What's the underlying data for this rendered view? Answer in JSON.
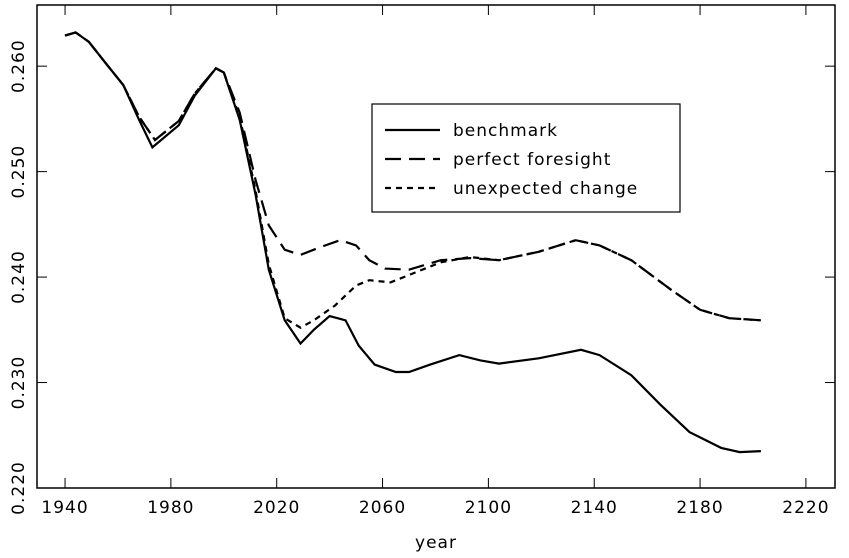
{
  "chart_data": {
    "type": "line",
    "x_label": "year",
    "xlim": [
      1929.4,
      2231
    ],
    "xticks": [
      1940,
      1980,
      2020,
      2060,
      2100,
      2140,
      2180,
      2220
    ],
    "ylim": [
      0.22,
      0.2658
    ],
    "yticks": [
      {
        "value": 0.22,
        "label": "0.220"
      },
      {
        "value": 0.23,
        "label": "0.230"
      },
      {
        "value": 0.24,
        "label": "0.240"
      },
      {
        "value": 0.25,
        "label": "0.250"
      },
      {
        "value": 0.26,
        "label": "0.260"
      }
    ],
    "series": [
      {
        "name": "benchmark",
        "color": "#000000",
        "dash": "solid",
        "x": [
          1940,
          1944,
          1949,
          1955,
          1962,
          1968,
          1973,
          1983,
          1989,
          1997,
          2000,
          2006,
          2012,
          2017,
          2023,
          2029,
          2034,
          2040,
          2046,
          2051,
          2057,
          2065,
          2070,
          2078,
          2089,
          2097,
          2104,
          2119,
          2135,
          2142,
          2154,
          2165,
          2176,
          2188,
          2195,
          2203
        ],
        "values": [
          0.2629,
          0.2632,
          0.2623,
          0.2604,
          0.2582,
          0.2549,
          0.2523,
          0.2544,
          0.2572,
          0.2598,
          0.2594,
          0.2549,
          0.2478,
          0.2407,
          0.2359,
          0.2337,
          0.235,
          0.2363,
          0.2359,
          0.2335,
          0.2317,
          0.231,
          0.231,
          0.2317,
          0.2326,
          0.2321,
          0.2318,
          0.2323,
          0.2331,
          0.2326,
          0.2307,
          0.2279,
          0.2253,
          0.2238,
          0.2234,
          0.2235
        ]
      },
      {
        "name": "perfect foresight",
        "color": "#000000",
        "dash": "long",
        "x": [
          1940,
          1944,
          1949,
          1955,
          1962,
          1968,
          1974,
          1983,
          1989,
          1997,
          2000,
          2006,
          2012,
          2017,
          2023,
          2029,
          2036,
          2044,
          2050,
          2055,
          2061,
          2070,
          2082,
          2093,
          2104,
          2119,
          2133,
          2142,
          2154,
          2169,
          2180,
          2191,
          2203
        ],
        "values": [
          0.2629,
          0.2632,
          0.2623,
          0.2604,
          0.2582,
          0.2552,
          0.253,
          0.2548,
          0.2574,
          0.2598,
          0.2594,
          0.2556,
          0.2492,
          0.2449,
          0.2426,
          0.2421,
          0.2428,
          0.2435,
          0.243,
          0.2416,
          0.2408,
          0.2407,
          0.2416,
          0.2418,
          0.2416,
          0.2424,
          0.2435,
          0.243,
          0.2416,
          0.2388,
          0.2369,
          0.2361,
          0.2359
        ]
      },
      {
        "name": "unexpected change",
        "color": "#000000",
        "dash": "short",
        "x": [
          1940,
          1944,
          1949,
          1955,
          1962,
          1968,
          1974,
          1983,
          1989,
          1997,
          2000,
          2006,
          2012,
          2017,
          2023,
          2029,
          2034,
          2042,
          2050,
          2055,
          2063,
          2070,
          2082,
          2093,
          2104,
          2119,
          2133,
          2142,
          2154,
          2169,
          2180,
          2191,
          2203
        ],
        "values": [
          0.2629,
          0.2632,
          0.2623,
          0.2604,
          0.2582,
          0.2552,
          0.253,
          0.2548,
          0.2574,
          0.2598,
          0.2594,
          0.2552,
          0.2482,
          0.2412,
          0.2361,
          0.2352,
          0.2359,
          0.2373,
          0.2392,
          0.2397,
          0.2395,
          0.2402,
          0.2414,
          0.2419,
          0.2416,
          0.2424,
          0.2435,
          0.243,
          0.2416,
          0.2388,
          0.2369,
          0.2361,
          0.2359
        ]
      }
    ]
  }
}
